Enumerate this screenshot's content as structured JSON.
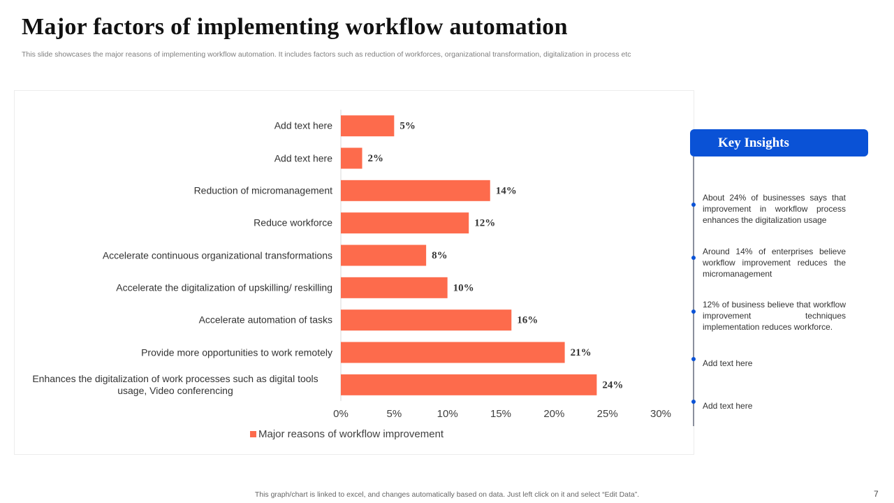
{
  "title": "Major factors of implementing workflow automation",
  "subtitle": "This slide showcases the major reasons of implementing workflow automation. It includes factors such as reduction of workforces, organizational transformation, digitalization in process etc",
  "chart_data": {
    "type": "bar",
    "orientation": "horizontal",
    "categories": [
      "Add text here",
      "Add text here",
      "Reduction of micromanagement",
      "Reduce workforce",
      "Accelerate continuous organizational transformations",
      "Accelerate the digitalization of upskilling/ reskilling",
      "Accelerate automation of tasks",
      "Provide more opportunities to work remotely",
      "Enhances the digitalization of work processes such as digital tools usage, Video conferencing"
    ],
    "series": [
      {
        "name": "Major reasons of workflow improvement",
        "color": "#fd6b4c",
        "values": [
          5,
          2,
          14,
          12,
          8,
          10,
          16,
          21,
          24
        ],
        "value_labels": [
          "5%",
          "2%",
          "14%",
          "12%",
          "8%",
          "10%",
          "16%",
          "21%",
          "24%"
        ]
      }
    ],
    "xlim": [
      0,
      30
    ],
    "xticks": [
      {
        "value": 0,
        "label": "0%"
      },
      {
        "value": 5,
        "label": "5%"
      },
      {
        "value": 10,
        "label": "10%"
      },
      {
        "value": 15,
        "label": "15%"
      },
      {
        "value": 20,
        "label": "20%"
      },
      {
        "value": 25,
        "label": "25%"
      },
      {
        "value": 30,
        "label": "30%"
      }
    ],
    "legend": "bottom"
  },
  "key_insights": {
    "title": "Key Insights",
    "items": [
      "About 24% of businesses says that improvement in workflow process enhances the digitalization usage",
      "Around 14% of enterprises believe workflow improvement reduces the micromanagement",
      "12% of business believe that workflow improvement techniques implementation reduces workforce.",
      "Add text here",
      "Add text here"
    ]
  },
  "footer": "This graph/chart is linked to excel,  and changes automatically based on data. Just left click on it and select “Edit Data”.",
  "page_number": "7"
}
